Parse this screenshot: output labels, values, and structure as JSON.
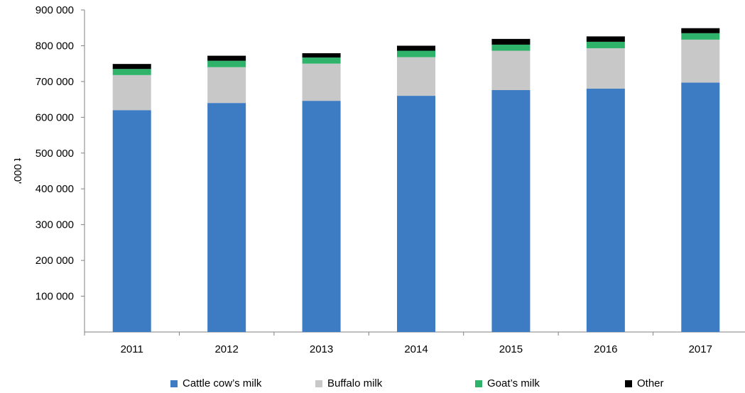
{
  "chart_data": {
    "type": "bar",
    "stacked": true,
    "title": "",
    "xlabel": "",
    "ylabel": "t 000'",
    "ylim": [
      0,
      900000
    ],
    "yticks": [
      100000,
      200000,
      300000,
      400000,
      500000,
      600000,
      700000,
      800000,
      900000
    ],
    "ytick_labels": [
      "100 000",
      "200 000",
      "300 000",
      "400 000",
      "500 000",
      "600 000",
      "700 000",
      "800 000",
      "900 000"
    ],
    "grid": false,
    "legend_position": "bottom",
    "categories": [
      "2011",
      "2012",
      "2013",
      "2014",
      "2015",
      "2016",
      "2017"
    ],
    "series": [
      {
        "name": "Cattle cow’s milk",
        "color": "#3d7cc2",
        "values": [
          620000,
          640000,
          646000,
          660000,
          676000,
          680000,
          697000
        ]
      },
      {
        "name": "Buffalo milk",
        "color": "#c8c8c8",
        "values": [
          98000,
          100000,
          104000,
          108000,
          110000,
          113000,
          120000
        ]
      },
      {
        "name": "Goat’s milk",
        "color": "#2fb36b",
        "values": [
          17000,
          18000,
          17000,
          18000,
          17000,
          18000,
          18000
        ]
      },
      {
        "name": "Other",
        "color": "#000000",
        "values": [
          14000,
          14000,
          12000,
          14000,
          16000,
          15000,
          14000
        ]
      }
    ]
  }
}
